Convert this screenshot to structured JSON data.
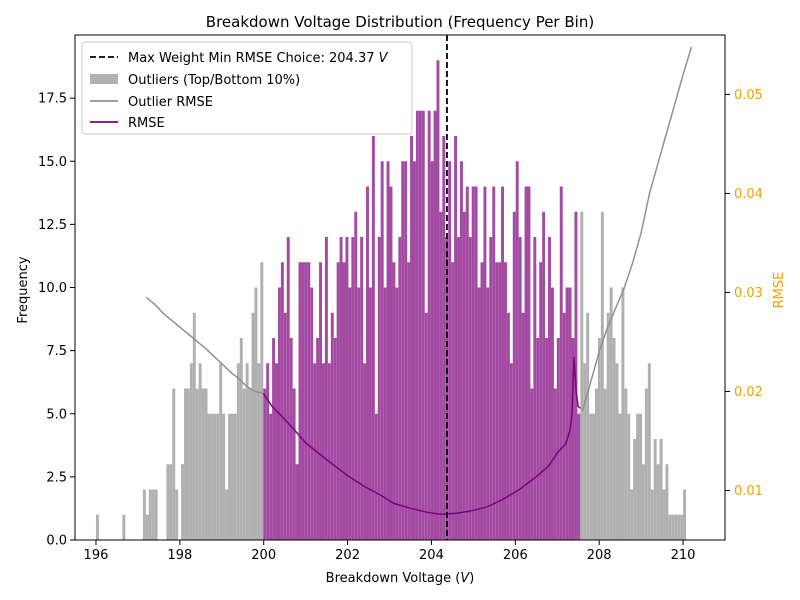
{
  "chart_data": {
    "type": "bar",
    "title": "Breakdown Voltage Distribution (Frequency Per Bin)",
    "xlabel_prefix": "Breakdown Voltage (",
    "xlabel_var": "V",
    "xlabel_suffix": ")",
    "ylabel": "Frequency",
    "y2label": "RMSE",
    "xlim": [
      195.5,
      211.0
    ],
    "ylim": [
      0,
      20
    ],
    "y2lim": [
      0.005,
      0.056
    ],
    "x_ticks": [
      196,
      198,
      200,
      202,
      204,
      206,
      208,
      210
    ],
    "y_ticks": [
      "0.0",
      "2.5",
      "5.0",
      "7.5",
      "10.0",
      "12.5",
      "15.0",
      "17.5"
    ],
    "y2_ticks": [
      "0.01",
      "0.02",
      "0.03",
      "0.04",
      "0.05"
    ],
    "colors": {
      "outlier_bars": "#b0b0b0",
      "main_bars": "#a34aa3",
      "rmse_line": "#800080",
      "outlier_rmse_line": "#909090",
      "choice_line": "#000000",
      "right_axis": "#f2a200"
    },
    "choice_line": {
      "x": 204.37,
      "label_prefix": "Max Weight Min RMSE Choice: 204.37 ",
      "label_var": "V"
    },
    "legend": {
      "placement": "top-left",
      "entries": [
        "Outliers (Top/Bottom 10%)",
        "Outlier RMSE",
        "RMSE"
      ]
    },
    "histogram": {
      "bin_start": 196.0,
      "bin_width": 0.07,
      "main_range": [
        199.99,
        207.57
      ],
      "counts": [
        1,
        0,
        0,
        0,
        0,
        0,
        0,
        0,
        0,
        1,
        0,
        0,
        0,
        0,
        0,
        0,
        2,
        1,
        2,
        2,
        2,
        0,
        0,
        0,
        3,
        3,
        6,
        2,
        0,
        3,
        6,
        6,
        7,
        9,
        6,
        7,
        6,
        6,
        5,
        5,
        5,
        5,
        7,
        5,
        2,
        5,
        5,
        5,
        7,
        8,
        6,
        7,
        6,
        9,
        10,
        7,
        11,
        6,
        7,
        5,
        8,
        7,
        10,
        11,
        9,
        12,
        8,
        6,
        3,
        11,
        11,
        11,
        11,
        10,
        7,
        8,
        11,
        7,
        12,
        7,
        9,
        8,
        11,
        12,
        11,
        12,
        10,
        12,
        13,
        10,
        12,
        7,
        14,
        10,
        16,
        5,
        12,
        15,
        10,
        15,
        14,
        11,
        10,
        12,
        15,
        15,
        11,
        16,
        15,
        17,
        17,
        17,
        9,
        17,
        15,
        17,
        19,
        13,
        16,
        12,
        15,
        11,
        16,
        12,
        15,
        13,
        14,
        12,
        14,
        14,
        10,
        11,
        14,
        10,
        12,
        14,
        11,
        11,
        14,
        11,
        9,
        7,
        13,
        15,
        12,
        9,
        14,
        14,
        6,
        12,
        8,
        11,
        13,
        8,
        12,
        10,
        6,
        8,
        14,
        9,
        10,
        10,
        8,
        13,
        5,
        13,
        7,
        9,
        5,
        5,
        6,
        8,
        13,
        6,
        9,
        10,
        8,
        7,
        5,
        10,
        6,
        5,
        2,
        4,
        5,
        5,
        3,
        6,
        7,
        2,
        4,
        3,
        4,
        2,
        3,
        1,
        1,
        1,
        1,
        1,
        2
      ],
      "counts_note": ""
    },
    "rmse": {
      "x": [
        199.99,
        200.2,
        200.5,
        200.8,
        201.0,
        201.3,
        201.6,
        202.0,
        202.4,
        202.8,
        203.1,
        203.5,
        203.9,
        204.2,
        204.6,
        204.9,
        205.3,
        205.7,
        206.1,
        206.5,
        206.8,
        207.0,
        207.2,
        207.3,
        207.35,
        207.4,
        207.45,
        207.5,
        207.55
      ],
      "y": [
        0.0198,
        0.0185,
        0.0172,
        0.0158,
        0.0148,
        0.0138,
        0.0128,
        0.0115,
        0.0104,
        0.0095,
        0.0087,
        0.0082,
        0.0078,
        0.0076,
        0.0077,
        0.0079,
        0.0083,
        0.0091,
        0.0101,
        0.0114,
        0.0125,
        0.0138,
        0.0147,
        0.016,
        0.0175,
        0.0235,
        0.02,
        0.0185,
        0.0183
      ]
    },
    "outlier_rmse": {
      "left": {
        "x": [
          197.2,
          197.4,
          197.6,
          197.8,
          198.0,
          198.2,
          198.4,
          198.6,
          198.8,
          199.0,
          199.2,
          199.4,
          199.6,
          199.8,
          200.0
        ],
        "y": [
          0.0295,
          0.0288,
          0.0279,
          0.0272,
          0.0265,
          0.0258,
          0.0251,
          0.0244,
          0.0236,
          0.0228,
          0.022,
          0.0213,
          0.0205,
          0.02,
          0.0198
        ]
      },
      "right": {
        "x": [
          207.6,
          207.8,
          208.0,
          208.2,
          208.4,
          208.6,
          208.8,
          209.0,
          209.2,
          209.4,
          209.6,
          209.8,
          210.0,
          210.2
        ],
        "y": [
          0.018,
          0.021,
          0.024,
          0.0265,
          0.0285,
          0.0305,
          0.033,
          0.036,
          0.04,
          0.043,
          0.046,
          0.049,
          0.052,
          0.0548
        ]
      }
    }
  }
}
